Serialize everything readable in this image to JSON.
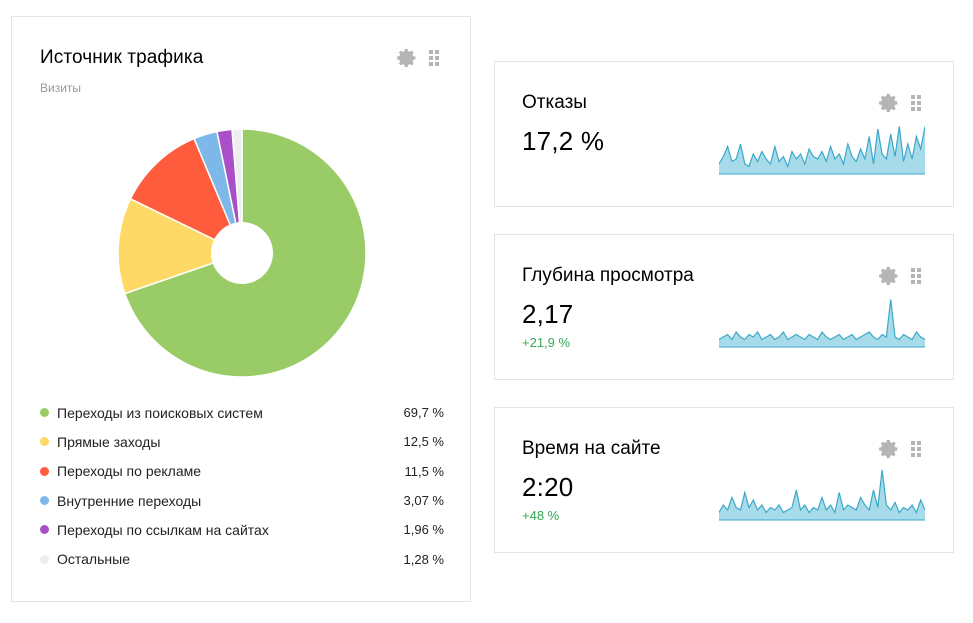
{
  "traffic": {
    "title": "Источник трафика",
    "subtitle": "Визиты",
    "chart_data": {
      "type": "pie",
      "title": "Источник трафика",
      "subtitle": "Визиты",
      "labels": [
        "Переходы из поисковых систем",
        "Прямые заходы",
        "Переходы по рекламе",
        "Внутренние переходы",
        "Переходы по ссылкам на сайтах",
        "Остальные"
      ],
      "values": [
        69.7,
        12.5,
        11.5,
        3.07,
        1.96,
        1.28
      ],
      "display_values": [
        "69,7 %",
        "12,5 %",
        "11,5 %",
        "3,07 %",
        "1,96 %",
        "1,28 %"
      ],
      "colors": [
        "#99cc66",
        "#ffd966",
        "#ff5c3d",
        "#7db8e8",
        "#a94fc7",
        "#eeeeee"
      ],
      "donut": true,
      "legend_position": "bottom"
    }
  },
  "metrics": [
    {
      "title": "Отказы",
      "value": "17,2 %",
      "delta": ""
    },
    {
      "title": "Глубина просмотра",
      "value": "2,17",
      "delta": "+21,9 %"
    },
    {
      "title": "Время на сайте",
      "value": "2:20",
      "delta": "+48 %"
    }
  ],
  "sparklines": [
    [
      0.2,
      0.35,
      0.55,
      0.25,
      0.3,
      0.6,
      0.2,
      0.15,
      0.4,
      0.25,
      0.45,
      0.3,
      0.2,
      0.55,
      0.25,
      0.35,
      0.15,
      0.45,
      0.3,
      0.4,
      0.2,
      0.5,
      0.35,
      0.3,
      0.45,
      0.25,
      0.55,
      0.3,
      0.4,
      0.2,
      0.6,
      0.35,
      0.25,
      0.5,
      0.3,
      0.75,
      0.2,
      0.9,
      0.4,
      0.3,
      0.8,
      0.35,
      0.95,
      0.25,
      0.6,
      0.3,
      0.75,
      0.5,
      0.95
    ],
    [
      0.15,
      0.2,
      0.25,
      0.15,
      0.3,
      0.2,
      0.15,
      0.25,
      0.2,
      0.3,
      0.15,
      0.2,
      0.25,
      0.15,
      0.2,
      0.3,
      0.15,
      0.2,
      0.25,
      0.2,
      0.15,
      0.25,
      0.2,
      0.15,
      0.3,
      0.2,
      0.15,
      0.2,
      0.25,
      0.15,
      0.2,
      0.25,
      0.15,
      0.2,
      0.25,
      0.3,
      0.2,
      0.15,
      0.25,
      0.2,
      0.95,
      0.2,
      0.15,
      0.25,
      0.2,
      0.15,
      0.3,
      0.2,
      0.15
    ],
    [
      0.15,
      0.3,
      0.2,
      0.45,
      0.25,
      0.2,
      0.55,
      0.25,
      0.4,
      0.2,
      0.3,
      0.15,
      0.25,
      0.2,
      0.3,
      0.15,
      0.2,
      0.25,
      0.6,
      0.2,
      0.3,
      0.15,
      0.25,
      0.2,
      0.45,
      0.2,
      0.3,
      0.15,
      0.55,
      0.2,
      0.3,
      0.25,
      0.2,
      0.45,
      0.3,
      0.2,
      0.6,
      0.25,
      1.0,
      0.3,
      0.2,
      0.35,
      0.15,
      0.25,
      0.2,
      0.3,
      0.15,
      0.4,
      0.2
    ]
  ],
  "icons": {
    "settings": "gear-icon",
    "drag": "drag-handle-icon"
  }
}
